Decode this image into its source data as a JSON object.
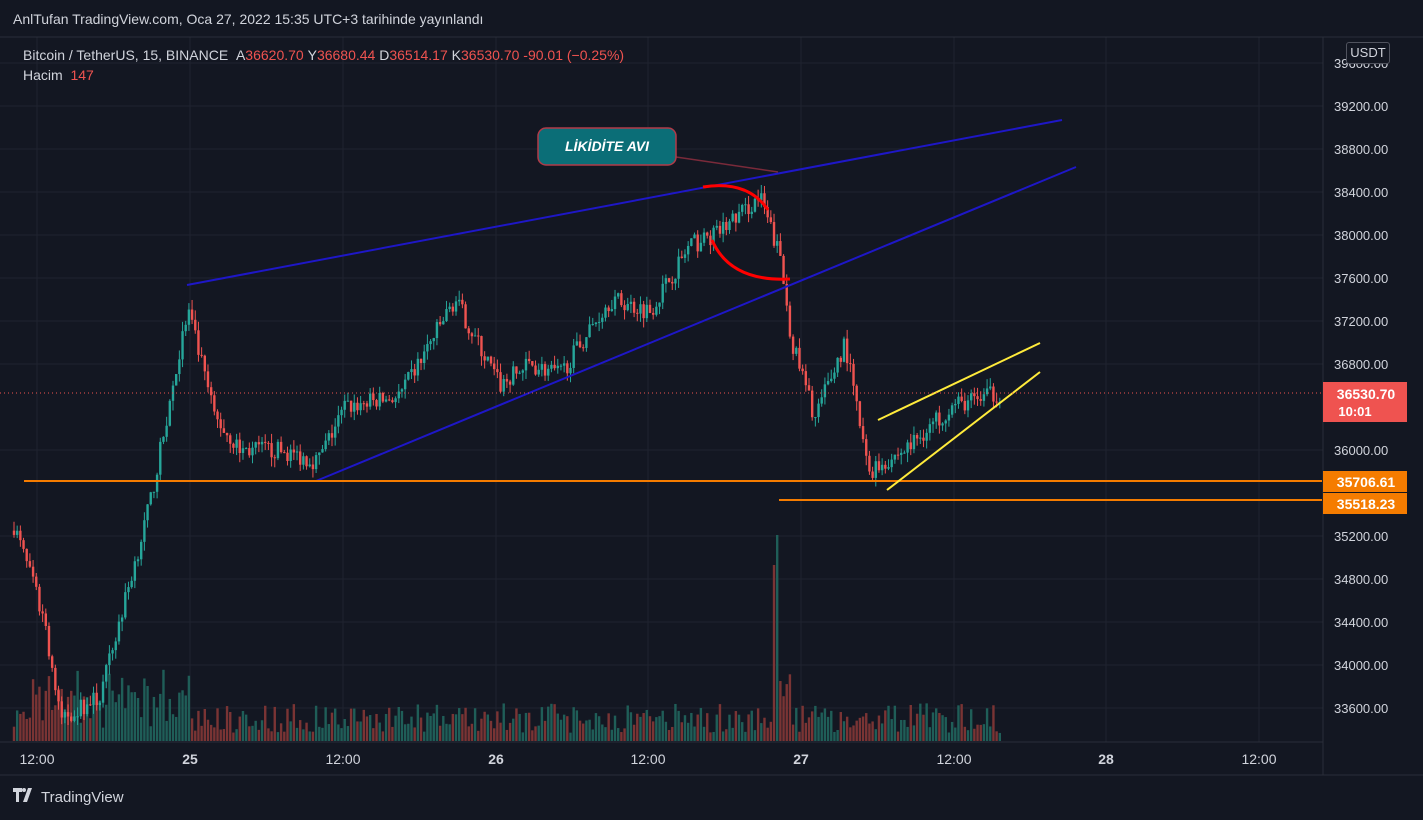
{
  "header": {
    "published": "AnlTufan TradingView.com, Oca 27, 2022 15:35 UTC+3 tarihinde yayınlandı"
  },
  "legend": {
    "symbol": "Bitcoin / TetherUS, 15, BINANCE",
    "open_label": "A",
    "open": "36620.70",
    "high_label": "Y",
    "high": "36680.44",
    "low_label": "D",
    "low": "36514.17",
    "close_label": "K",
    "close": "36530.70",
    "change": "-90.01 (−0.25%)",
    "volume_label": "Hacim",
    "volume": "147"
  },
  "currency": "USDT",
  "footer": {
    "brand": "TradingView"
  },
  "colors": {
    "up": "#26a69a",
    "down": "#ef5350",
    "channel": "#1e17c7",
    "level": "#f57c00",
    "wedge": "#ffeb3b",
    "bg": "#131722",
    "annotation": "#0b6e77"
  },
  "annotation": {
    "text": "LİKİDİTE AVI"
  },
  "chart_data": {
    "type": "candlestick",
    "symbol": "BTC/USDT",
    "interval": "15",
    "x_tick_labels": [
      "12:00",
      "25",
      "12:00",
      "26",
      "12:00",
      "27",
      "12:00",
      "28",
      "12:00"
    ],
    "y_tick_labels": [
      "33600.00",
      "34000.00",
      "34400.00",
      "34800.00",
      "35200.00",
      "36000.00",
      "36800.00",
      "37200.00",
      "37600.00",
      "38000.00",
      "38400.00",
      "38800.00",
      "39200.00",
      "39600.00"
    ],
    "ylim": [
      33300,
      39700
    ],
    "last_price": {
      "value": "36530.70",
      "countdown": "10:01"
    },
    "levels": [
      {
        "label": "35706.61",
        "value": 35706.61
      },
      {
        "label": "35518.23",
        "value": 35518.23
      }
    ],
    "path_keypoints": [
      {
        "x": "24 Ocak 06:00",
        "y": 35300
      },
      {
        "x": "24 Ocak 09:00",
        "y": 34400
      },
      {
        "x": "24 Ocak 12:00",
        "y": 33500
      },
      {
        "x": "24 Ocak 18:00",
        "y": 33700
      },
      {
        "x": "24 Ocak 21:00",
        "y": 35500
      },
      {
        "x": "25 Ocak 00:00",
        "y": 37300
      },
      {
        "x": "25 Ocak 03:00",
        "y": 36300
      },
      {
        "x": "25 Ocak 06:00",
        "y": 36000
      },
      {
        "x": "25 Ocak 09:00",
        "y": 36000
      },
      {
        "x": "25 Ocak 12:00",
        "y": 35900
      },
      {
        "x": "25 Ocak 15:00",
        "y": 36400
      },
      {
        "x": "25 Ocak 18:00",
        "y": 36500
      },
      {
        "x": "25 Ocak 21:00",
        "y": 37400
      },
      {
        "x": "26 Ocak 00:00",
        "y": 36600
      },
      {
        "x": "26 Ocak 03:00",
        "y": 36800
      },
      {
        "x": "26 Ocak 06:00",
        "y": 36700
      },
      {
        "x": "26 Ocak 09:00",
        "y": 37400
      },
      {
        "x": "26 Ocak 12:00",
        "y": 37300
      },
      {
        "x": "26 Ocak 15:00",
        "y": 37900
      },
      {
        "x": "26 Ocak 18:00",
        "y": 38000
      },
      {
        "x": "26 Ocak 21:00",
        "y": 38350
      },
      {
        "x": "26 Ocak 23:00",
        "y": 37800
      },
      {
        "x": "27 Ocak 00:00",
        "y": 37000
      },
      {
        "x": "27 Ocak 02:00",
        "y": 36300
      },
      {
        "x": "27 Ocak 04:00",
        "y": 37000
      },
      {
        "x": "27 Ocak 06:00",
        "y": 35800
      },
      {
        "x": "27 Ocak 09:00",
        "y": 36000
      },
      {
        "x": "27 Ocak 12:00",
        "y": 36400
      },
      {
        "x": "27 Ocak 15:30",
        "y": 36530
      }
    ],
    "volume": {
      "label": "Hacim",
      "last": 147,
      "spike_at": "27 Ocak 00:00"
    }
  }
}
